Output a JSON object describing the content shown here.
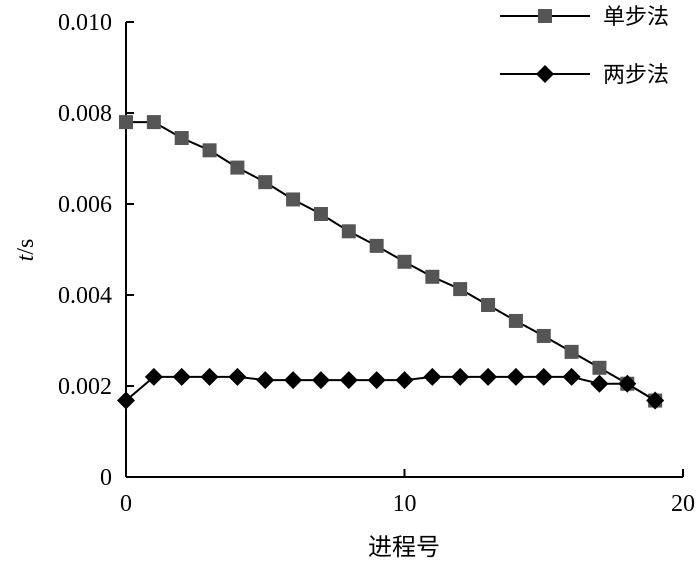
{
  "chart_data": {
    "type": "line",
    "xlabel": "进程号",
    "ylabel": "t/s",
    "xlim": [
      0,
      20
    ],
    "ylim": [
      0,
      0.01
    ],
    "x_ticks": [
      "0",
      "10",
      "20"
    ],
    "y_ticks": [
      "0",
      "0.002",
      "0.004",
      "0.006",
      "0.008",
      "0.010"
    ],
    "grid": false,
    "legend_position": "top-right",
    "x": [
      0,
      1,
      2,
      3,
      4,
      5,
      6,
      7,
      8,
      9,
      10,
      11,
      12,
      13,
      14,
      15,
      16,
      17,
      18,
      19
    ],
    "series": [
      {
        "name": "单步法",
        "marker": "square",
        "color": "#555555",
        "values": [
          0.0078,
          0.0078,
          0.00745,
          0.00718,
          0.0068,
          0.00648,
          0.0061,
          0.00578,
          0.0054,
          0.00508,
          0.00473,
          0.0044,
          0.00413,
          0.00378,
          0.00343,
          0.0031,
          0.00275,
          0.0024,
          0.00205,
          0.00168
        ]
      },
      {
        "name": "两步法",
        "marker": "diamond",
        "color": "#000000",
        "values": [
          0.00168,
          0.0022,
          0.0022,
          0.0022,
          0.0022,
          0.00213,
          0.00213,
          0.00213,
          0.00213,
          0.00213,
          0.00213,
          0.0022,
          0.0022,
          0.0022,
          0.0022,
          0.0022,
          0.0022,
          0.00205,
          0.00205,
          0.00168
        ]
      }
    ]
  }
}
